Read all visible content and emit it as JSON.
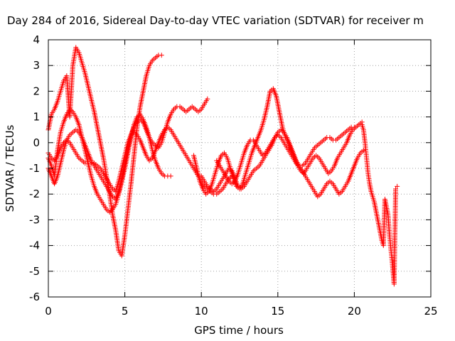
{
  "chart_data": {
    "type": "scatter",
    "title": "Day 284 of 2016, Sidereal Day-to-day VTEC variation (SDTVAR) for receiver m",
    "xlabel": "GPS time / hours",
    "ylabel": "SDTVAR / TECUs",
    "xlim": [
      0,
      25
    ],
    "ylim": [
      -6,
      4
    ],
    "x_ticks": [
      "0",
      "5",
      "10",
      "15",
      "20",
      "25"
    ],
    "y_ticks": [
      "4",
      "3",
      "2",
      "1",
      "0",
      "-1",
      "-2",
      "-3",
      "-4",
      "-5",
      "-6"
    ],
    "grid": true,
    "marker": "+",
    "color": "#ff0000",
    "series": [
      {
        "x": [
          0.0,
          0.1,
          0.2,
          0.4,
          0.6,
          0.8,
          1.0,
          1.2,
          1.4,
          1.6,
          1.8,
          2.0,
          2.2,
          2.4,
          2.6,
          2.8,
          3.0,
          3.2,
          3.4,
          3.6,
          3.8,
          4.0,
          4.2,
          4.4,
          4.6,
          4.8,
          5.0,
          5.2,
          5.4,
          5.6,
          5.8,
          6.0,
          6.2,
          6.4,
          6.6,
          6.8,
          7.0,
          7.2,
          7.4,
          7.6,
          7.8,
          8.0,
          8.2
        ],
        "y": [
          0.5,
          0.8,
          1.1,
          1.3,
          1.6,
          2.0,
          2.4,
          2.6,
          1.0,
          3.0,
          3.7,
          3.5,
          3.1,
          2.7,
          2.2,
          1.7,
          1.2,
          0.6,
          0.0,
          -0.6,
          -1.3,
          -2.0,
          -2.8,
          -3.4,
          -4.2,
          -4.4,
          -3.6,
          -2.6,
          -1.6,
          -0.5,
          0.6,
          1.4,
          2.0,
          2.6,
          3.0,
          3.2,
          3.3,
          3.4,
          3.4,
          null,
          null,
          null,
          null
        ]
      },
      {
        "x": [
          0.0,
          0.2,
          0.4,
          0.6,
          0.8,
          1.0,
          1.2,
          1.4,
          1.6,
          1.8,
          2.0,
          2.2,
          2.4,
          2.6,
          2.8,
          3.0,
          3.2,
          3.4,
          3.6,
          3.8,
          4.0,
          4.2,
          4.4,
          4.6,
          4.8,
          5.0,
          5.2,
          5.4,
          5.6,
          5.8,
          6.0,
          6.2,
          6.4,
          6.6,
          6.8,
          7.0,
          7.2,
          7.4,
          7.6,
          7.8,
          8.0
        ],
        "y": [
          -0.6,
          -0.9,
          -1.3,
          -0.3,
          0.4,
          0.8,
          1.1,
          1.3,
          1.2,
          1.0,
          0.7,
          0.2,
          -0.3,
          -0.8,
          -1.3,
          -1.7,
          -2.0,
          -2.2,
          -2.4,
          -2.6,
          -2.7,
          -2.6,
          -2.4,
          -2.0,
          -1.5,
          -1.0,
          -0.4,
          0.2,
          0.7,
          1.0,
          1.1,
          0.9,
          0.6,
          0.2,
          -0.3,
          -0.7,
          -1.0,
          -1.2,
          -1.3,
          -1.3,
          -1.3
        ]
      },
      {
        "x": [
          0.0,
          0.2,
          0.4,
          0.6,
          0.8,
          1.0,
          1.2,
          1.4,
          1.6,
          1.8,
          2.0,
          2.2,
          2.4,
          2.6,
          2.8,
          3.0,
          3.2,
          3.4,
          3.6,
          3.8,
          4.0,
          4.2,
          4.4,
          4.6,
          4.8,
          5.0,
          5.2,
          5.4,
          5.6,
          5.8,
          6.0,
          6.2,
          6.4,
          6.6,
          6.8,
          7.0,
          7.2,
          7.4,
          7.6,
          7.8,
          8.0,
          8.2,
          8.4,
          8.6,
          8.8,
          9.0,
          9.2,
          9.4,
          9.6,
          9.8,
          10.0,
          10.2,
          10.4
        ],
        "y": [
          -1.0,
          -1.3,
          -1.6,
          -1.3,
          -0.8,
          -0.3,
          0.1,
          0.3,
          0.4,
          0.5,
          0.4,
          0.2,
          -0.1,
          -0.4,
          -0.7,
          -0.9,
          -1.1,
          -1.3,
          -1.5,
          -1.7,
          -1.9,
          -2.1,
          -2.2,
          -1.9,
          -1.4,
          -0.8,
          -0.2,
          0.3,
          0.6,
          0.8,
          0.9,
          0.8,
          0.5,
          0.2,
          0.0,
          -0.1,
          -0.2,
          0.0,
          0.4,
          0.8,
          1.1,
          1.3,
          1.4,
          1.4,
          1.3,
          1.2,
          1.3,
          1.4,
          1.3,
          1.2,
          1.3,
          1.5,
          1.7
        ]
      },
      {
        "x": [
          0.0,
          0.2,
          0.4,
          0.6,
          0.8,
          1.0,
          1.2,
          1.4,
          1.6,
          1.8,
          2.0,
          2.2,
          2.4,
          2.6,
          2.8,
          3.0,
          3.2,
          3.4,
          3.6,
          3.8,
          4.0,
          4.2,
          4.4,
          4.6,
          4.8,
          5.0,
          5.2,
          5.4,
          5.6,
          5.8,
          6.0,
          6.2,
          6.4,
          6.6,
          6.8,
          7.0,
          7.2,
          7.4,
          7.6,
          7.8,
          8.0,
          8.2,
          8.4,
          8.6,
          8.8,
          9.0,
          9.2,
          9.4,
          9.6,
          9.8,
          10.0,
          10.2,
          10.4,
          10.6,
          10.8,
          11.0,
          11.2,
          11.4,
          11.6,
          11.8,
          12.0
        ],
        "y": [
          -0.4,
          -0.6,
          -0.7,
          -0.5,
          -0.2,
          0.0,
          0.1,
          0.0,
          -0.2,
          -0.4,
          -0.6,
          -0.7,
          -0.8,
          -0.8,
          -0.8,
          -0.8,
          -0.9,
          -1.0,
          -1.2,
          -1.4,
          -1.6,
          -1.8,
          -1.9,
          -1.5,
          -1.0,
          -0.5,
          0.0,
          0.3,
          0.4,
          0.3,
          0.1,
          -0.2,
          -0.5,
          -0.7,
          -0.6,
          -0.3,
          0.0,
          0.3,
          0.5,
          0.6,
          0.5,
          0.3,
          0.1,
          -0.1,
          -0.3,
          -0.5,
          -0.7,
          -0.9,
          -1.1,
          -1.3,
          -1.5,
          -1.7,
          -1.8,
          -1.9,
          -2.0,
          -2.0,
          -1.9,
          -1.8,
          -1.6,
          -1.4,
          -1.3
        ]
      },
      {
        "x": [
          9.5,
          9.7,
          9.9,
          10.1,
          10.3,
          10.5,
          10.7,
          10.9,
          11.1,
          11.3,
          11.5,
          11.7,
          11.9,
          12.1,
          12.3,
          12.5,
          12.7,
          12.9,
          13.1,
          13.3,
          13.5,
          13.7,
          13.9,
          14.1,
          14.3,
          14.5,
          14.7,
          14.9,
          15.1,
          15.3,
          15.5,
          15.7,
          15.9,
          16.1,
          16.3,
          16.5,
          16.7,
          16.9,
          17.1,
          17.3,
          17.5,
          17.7,
          17.9,
          18.1,
          18.3,
          18.5,
          18.7,
          18.9,
          19.1,
          19.3,
          19.5,
          19.7,
          19.9,
          20.1,
          20.3,
          20.5
        ],
        "y": [
          -0.5,
          -1.0,
          -1.5,
          -1.8,
          -2.0,
          -1.9,
          -1.6,
          -1.2,
          -0.8,
          -0.5,
          -0.4,
          -0.6,
          -1.0,
          -1.4,
          -1.7,
          -1.8,
          -1.6,
          -1.2,
          -0.8,
          -0.4,
          -0.1,
          0.2,
          0.5,
          0.9,
          1.4,
          2.0,
          2.1,
          1.8,
          1.2,
          0.6,
          0.2,
          0.0,
          -0.3,
          -0.6,
          -0.9,
          -1.1,
          -1.2,
          -1.0,
          -0.8,
          -0.6,
          -0.5,
          -0.6,
          -0.8,
          -1.0,
          -1.2,
          -1.1,
          -0.9,
          -0.6,
          -0.4,
          -0.2,
          0.0,
          0.3,
          0.5,
          0.6,
          0.7,
          0.8
        ]
      },
      {
        "x": [
          10.0,
          10.2,
          10.4,
          10.6,
          10.8,
          11.0,
          11.2,
          11.4,
          11.6,
          11.8,
          12.0,
          12.2,
          12.4,
          12.6,
          12.8,
          13.0,
          13.2,
          13.4,
          13.6,
          13.8,
          14.0,
          14.2,
          14.4,
          14.6,
          14.8,
          15.0,
          15.2,
          15.4,
          15.6,
          15.8,
          16.0,
          16.2,
          16.4,
          16.6,
          16.8,
          17.0,
          17.2,
          17.4,
          17.6,
          17.8,
          18.0,
          18.2,
          18.4,
          18.6,
          18.8,
          19.0,
          19.2,
          19.4,
          19.6,
          19.8,
          20.0,
          20.2,
          20.4,
          20.6
        ],
        "y": [
          -1.3,
          -1.5,
          -1.7,
          -1.8,
          -1.9,
          -1.8,
          -1.6,
          -1.4,
          -1.2,
          -1.0,
          -1.1,
          -1.4,
          -1.7,
          -1.8,
          -1.7,
          -1.5,
          -1.3,
          -1.1,
          -1.0,
          -0.9,
          -0.7,
          -0.5,
          -0.3,
          -0.1,
          0.2,
          0.4,
          0.5,
          0.4,
          0.2,
          -0.1,
          -0.4,
          -0.7,
          -0.9,
          -1.1,
          -1.3,
          -1.5,
          -1.7,
          -1.9,
          -2.1,
          -2.0,
          -1.8,
          -1.6,
          -1.5,
          -1.6,
          -1.8,
          -2.0,
          -1.9,
          -1.7,
          -1.5,
          -1.2,
          -0.9,
          -0.6,
          -0.4,
          -0.3
        ]
      },
      {
        "x": [
          11.0,
          11.2,
          11.4,
          11.6,
          11.8,
          12.0,
          12.2,
          12.4,
          12.6,
          12.8,
          13.0,
          13.2,
          13.4,
          13.6,
          13.8,
          14.0,
          14.2,
          14.4,
          14.6,
          14.8,
          15.0,
          15.2,
          15.4,
          15.6,
          15.8,
          16.0,
          16.2,
          16.4,
          16.6,
          16.8,
          17.0,
          17.2,
          17.4,
          17.6,
          17.8,
          18.0,
          18.2,
          18.4,
          18.6,
          18.8,
          19.0,
          19.2,
          19.4,
          19.6,
          19.8,
          20.0
        ],
        "y": [
          -0.7,
          -0.9,
          -1.1,
          -1.3,
          -1.5,
          -1.6,
          -1.5,
          -1.2,
          -0.8,
          -0.4,
          -0.1,
          0.1,
          0.1,
          -0.1,
          -0.3,
          -0.5,
          -0.4,
          -0.2,
          0.0,
          0.2,
          0.3,
          0.2,
          0.0,
          -0.2,
          -0.4,
          -0.6,
          -0.8,
          -0.9,
          -0.9,
          -0.8,
          -0.6,
          -0.4,
          -0.2,
          -0.1,
          0.0,
          0.1,
          0.2,
          0.2,
          0.1,
          0.1,
          0.2,
          0.3,
          0.4,
          0.5,
          0.6,
          0.6
        ]
      },
      {
        "x": [
          20.5,
          20.6,
          20.7,
          20.8,
          20.9,
          21.0,
          21.1,
          21.2,
          21.3,
          21.4,
          21.5,
          21.6,
          21.7,
          21.8,
          21.9,
          22.0,
          22.1,
          22.2,
          22.3,
          22.4,
          22.5,
          22.6,
          22.7,
          22.8
        ],
        "y": [
          0.7,
          0.5,
          0.0,
          -0.6,
          -1.2,
          -1.6,
          -1.9,
          -2.1,
          -2.3,
          -2.6,
          -2.9,
          -3.2,
          -3.5,
          -3.8,
          -4.0,
          -2.2,
          -2.5,
          -2.8,
          -3.6,
          -4.2,
          -4.8,
          -5.5,
          -1.8,
          -1.7
        ]
      }
    ]
  }
}
